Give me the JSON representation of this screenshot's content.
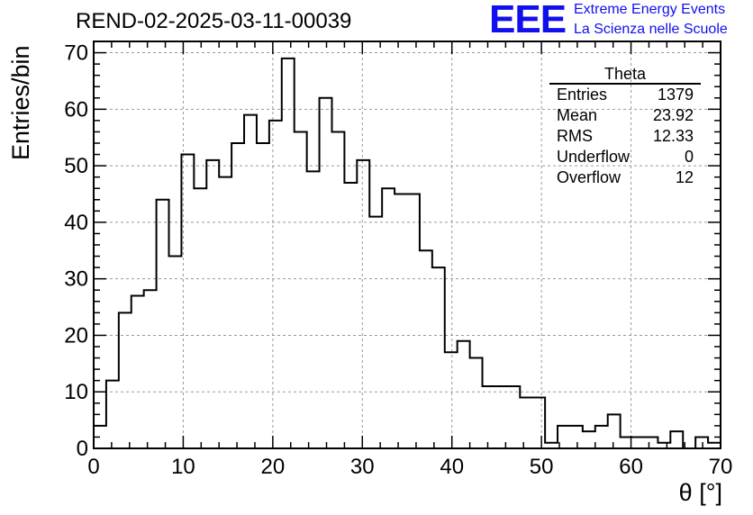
{
  "title": "REND-02-2025-03-11-00039",
  "logo": {
    "word": "EEE",
    "line1": "Extreme Energy Events",
    "line2": "La Scienza nelle Scuole",
    "color": "#1010ee"
  },
  "stats_box": {
    "title": "Theta",
    "rows": [
      {
        "label": "Entries",
        "value": "1379"
      },
      {
        "label": "Mean",
        "value": "23.92"
      },
      {
        "label": "RMS",
        "value": "12.33"
      },
      {
        "label": "Underflow",
        "value": "0"
      },
      {
        "label": "Overflow",
        "value": "12"
      }
    ]
  },
  "chart_data": {
    "type": "histogram",
    "title": "REND-02-2025-03-11-00039",
    "xlabel": "θ [°]",
    "ylabel": "Entries/bin",
    "xlim": [
      0,
      70
    ],
    "ylim": [
      0,
      72
    ],
    "bin_width": 1.4,
    "xticks": [
      0,
      10,
      20,
      30,
      40,
      50,
      60,
      70
    ],
    "yticks": [
      0,
      10,
      20,
      30,
      40,
      50,
      60,
      70
    ],
    "grid": true,
    "bin_counts": [
      4,
      12,
      24,
      27,
      28,
      44,
      34,
      52,
      46,
      51,
      48,
      54,
      59,
      54,
      58,
      69,
      56,
      49,
      62,
      56,
      47,
      51,
      41,
      46,
      45,
      45,
      35,
      32,
      17,
      19,
      16,
      11,
      11,
      11,
      9,
      9,
      1,
      4,
      4,
      3,
      4,
      6,
      2,
      2,
      2,
      1,
      3,
      0,
      2,
      1
    ]
  }
}
